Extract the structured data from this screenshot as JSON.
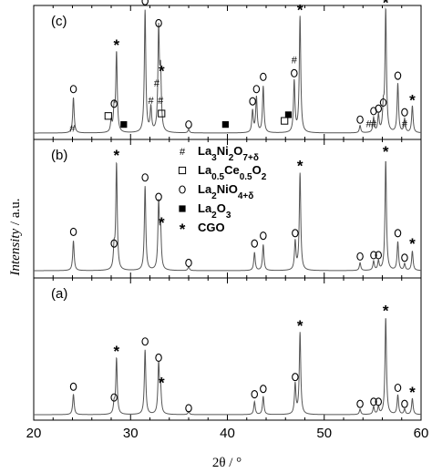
{
  "chart_data": {
    "type": "line",
    "xlabel": "2θ / °",
    "ylabel_italic": "Intensity",
    "ylabel_rest": " / a.u.",
    "xlim": [
      20,
      60
    ],
    "x_ticks": [
      20,
      30,
      40,
      50,
      60
    ],
    "panels": [
      {
        "label": "(c)",
        "peaks": [
          {
            "x": 24.1,
            "h": 0.29
          },
          {
            "x": 28.0,
            "h": 0.09
          },
          {
            "x": 28.3,
            "h": 0.18
          },
          {
            "x": 28.55,
            "h": 0.65
          },
          {
            "x": 31.5,
            "h": 1.0
          },
          {
            "x": 32.1,
            "h": 0.2
          },
          {
            "x": 32.9,
            "h": 0.82
          },
          {
            "x": 33.1,
            "h": 0.45
          },
          {
            "x": 36.0,
            "h": 0.03
          },
          {
            "x": 42.6,
            "h": 0.18
          },
          {
            "x": 43.0,
            "h": 0.29
          },
          {
            "x": 43.7,
            "h": 0.38
          },
          {
            "x": 46.9,
            "h": 0.42
          },
          {
            "x": 47.5,
            "h": 0.95
          },
          {
            "x": 53.7,
            "h": 0.06
          },
          {
            "x": 55.1,
            "h": 0.12
          },
          {
            "x": 55.6,
            "h": 0.14
          },
          {
            "x": 56.1,
            "h": 0.18
          },
          {
            "x": 56.35,
            "h": 1.0
          },
          {
            "x": 57.6,
            "h": 0.4
          },
          {
            "x": 58.3,
            "h": 0.11
          },
          {
            "x": 59.1,
            "h": 0.22
          }
        ],
        "markers": [
          {
            "sym": "o",
            "x": 24.1,
            "y": 0.36
          },
          {
            "sym": "o",
            "x": 28.3,
            "y": 0.24
          },
          {
            "sym": "*",
            "x": 28.55,
            "y": 0.73
          },
          {
            "sym": "o",
            "x": 31.5,
            "y": 1.08
          },
          {
            "sym": "o",
            "x": 32.9,
            "y": 0.9
          },
          {
            "sym": "*",
            "x": 33.2,
            "y": 0.52
          },
          {
            "sym": "o",
            "x": 36.0,
            "y": 0.07
          },
          {
            "sym": "o",
            "x": 42.6,
            "y": 0.26
          },
          {
            "sym": "o",
            "x": 43.0,
            "y": 0.36
          },
          {
            "sym": "o",
            "x": 43.7,
            "y": 0.46
          },
          {
            "sym": "o",
            "x": 46.9,
            "y": 0.49
          },
          {
            "sym": "*",
            "x": 47.5,
            "y": 1.02
          },
          {
            "sym": "o",
            "x": 53.7,
            "y": 0.11
          },
          {
            "sym": "o",
            "x": 55.1,
            "y": 0.18
          },
          {
            "sym": "o",
            "x": 55.6,
            "y": 0.2
          },
          {
            "sym": "o",
            "x": 56.1,
            "y": 0.25
          },
          {
            "sym": "*",
            "x": 56.35,
            "y": 1.08
          },
          {
            "sym": "o",
            "x": 57.6,
            "y": 0.47
          },
          {
            "sym": "o",
            "x": 58.3,
            "y": 0.17
          },
          {
            "sym": "*",
            "x": 59.1,
            "y": 0.28
          },
          {
            "sym": "#",
            "x": 24.0,
            "y": 0.04
          },
          {
            "sym": "#",
            "x": 32.1,
            "y": 0.27
          },
          {
            "sym": "#",
            "x": 32.7,
            "y": 0.41
          },
          {
            "sym": "#",
            "x": 33.1,
            "y": 0.27
          },
          {
            "sym": "#",
            "x": 46.9,
            "y": 0.6
          },
          {
            "sym": "#",
            "x": 54.6,
            "y": 0.08
          },
          {
            "sym": "#",
            "x": 55.1,
            "y": 0.08
          },
          {
            "sym": "#",
            "x": 58.3,
            "y": 0.08
          },
          {
            "sym": "□",
            "x": 27.7,
            "y": 0.14
          },
          {
            "sym": "□",
            "x": 33.2,
            "y": 0.16
          },
          {
            "sym": "□",
            "x": 45.9,
            "y": 0.1
          },
          {
            "sym": "■",
            "x": 29.3,
            "y": 0.07
          },
          {
            "sym": "■",
            "x": 39.8,
            "y": 0.07
          },
          {
            "sym": "■",
            "x": 46.3,
            "y": 0.15
          }
        ]
      },
      {
        "label": "(b)",
        "peaks": [
          {
            "x": 24.1,
            "h": 0.23
          },
          {
            "x": 28.3,
            "h": 0.15
          },
          {
            "x": 28.55,
            "h": 0.82
          },
          {
            "x": 31.5,
            "h": 0.65
          },
          {
            "x": 32.9,
            "h": 0.5
          },
          {
            "x": 33.1,
            "h": 0.3
          },
          {
            "x": 36.0,
            "h": 0.03
          },
          {
            "x": 42.8,
            "h": 0.14
          },
          {
            "x": 43.7,
            "h": 0.2
          },
          {
            "x": 47.0,
            "h": 0.22
          },
          {
            "x": 47.5,
            "h": 0.75
          },
          {
            "x": 53.7,
            "h": 0.06
          },
          {
            "x": 55.1,
            "h": 0.07
          },
          {
            "x": 55.6,
            "h": 0.07
          },
          {
            "x": 56.35,
            "h": 0.85
          },
          {
            "x": 57.6,
            "h": 0.22
          },
          {
            "x": 58.3,
            "h": 0.05
          },
          {
            "x": 59.1,
            "h": 0.15
          }
        ],
        "markers": [
          {
            "sym": "o",
            "x": 24.1,
            "y": 0.3
          },
          {
            "sym": "o",
            "x": 28.3,
            "y": 0.21
          },
          {
            "sym": "*",
            "x": 28.55,
            "y": 0.9
          },
          {
            "sym": "o",
            "x": 31.5,
            "y": 0.72
          },
          {
            "sym": "o",
            "x": 32.9,
            "y": 0.57
          },
          {
            "sym": "*",
            "x": 33.2,
            "y": 0.38
          },
          {
            "sym": "o",
            "x": 36.0,
            "y": 0.06
          },
          {
            "sym": "o",
            "x": 42.8,
            "y": 0.21
          },
          {
            "sym": "o",
            "x": 43.7,
            "y": 0.27
          },
          {
            "sym": "o",
            "x": 47.0,
            "y": 0.29
          },
          {
            "sym": "*",
            "x": 47.5,
            "y": 0.82
          },
          {
            "sym": "o",
            "x": 53.7,
            "y": 0.11
          },
          {
            "sym": "o",
            "x": 55.1,
            "y": 0.12
          },
          {
            "sym": "o",
            "x": 55.6,
            "y": 0.12
          },
          {
            "sym": "*",
            "x": 56.35,
            "y": 0.93
          },
          {
            "sym": "o",
            "x": 57.6,
            "y": 0.29
          },
          {
            "sym": "o",
            "x": 58.3,
            "y": 0.1
          },
          {
            "sym": "*",
            "x": 59.1,
            "y": 0.22
          }
        ]
      },
      {
        "label": "(a)",
        "peaks": [
          {
            "x": 24.1,
            "h": 0.19
          },
          {
            "x": 28.3,
            "h": 0.09
          },
          {
            "x": 28.55,
            "h": 0.52
          },
          {
            "x": 31.5,
            "h": 0.6
          },
          {
            "x": 32.9,
            "h": 0.46
          },
          {
            "x": 33.1,
            "h": 0.23
          },
          {
            "x": 36.0,
            "h": 0.03
          },
          {
            "x": 42.8,
            "h": 0.12
          },
          {
            "x": 43.7,
            "h": 0.17
          },
          {
            "x": 47.0,
            "h": 0.28
          },
          {
            "x": 47.5,
            "h": 0.76
          },
          {
            "x": 53.7,
            "h": 0.05
          },
          {
            "x": 55.1,
            "h": 0.07
          },
          {
            "x": 55.6,
            "h": 0.07
          },
          {
            "x": 56.35,
            "h": 0.9
          },
          {
            "x": 57.6,
            "h": 0.18
          },
          {
            "x": 58.3,
            "h": 0.05
          },
          {
            "x": 59.1,
            "h": 0.15
          }
        ],
        "markers": [
          {
            "sym": "o",
            "x": 24.1,
            "y": 0.26
          },
          {
            "sym": "o",
            "x": 28.3,
            "y": 0.16
          },
          {
            "sym": "*",
            "x": 28.55,
            "y": 0.6
          },
          {
            "sym": "o",
            "x": 31.5,
            "y": 0.68
          },
          {
            "sym": "o",
            "x": 32.9,
            "y": 0.53
          },
          {
            "sym": "*",
            "x": 33.2,
            "y": 0.31
          },
          {
            "sym": "o",
            "x": 36.0,
            "y": 0.06
          },
          {
            "sym": "o",
            "x": 42.8,
            "y": 0.19
          },
          {
            "sym": "o",
            "x": 43.7,
            "y": 0.24
          },
          {
            "sym": "o",
            "x": 47.0,
            "y": 0.35
          },
          {
            "sym": "*",
            "x": 47.5,
            "y": 0.84
          },
          {
            "sym": "o",
            "x": 53.7,
            "y": 0.1
          },
          {
            "sym": "o",
            "x": 55.1,
            "y": 0.12
          },
          {
            "sym": "o",
            "x": 55.6,
            "y": 0.12
          },
          {
            "sym": "*",
            "x": 56.35,
            "y": 0.98
          },
          {
            "sym": "o",
            "x": 57.6,
            "y": 0.25
          },
          {
            "sym": "o",
            "x": 58.3,
            "y": 0.1
          },
          {
            "sym": "*",
            "x": 59.1,
            "y": 0.22
          }
        ]
      }
    ],
    "legend": {
      "placement": "middle panel, center",
      "entries": [
        {
          "sym": "#",
          "parts": [
            [
              "La",
              ""
            ],
            [
              "3",
              "sub"
            ],
            [
              "Ni",
              ""
            ],
            [
              "2",
              "sub"
            ],
            [
              "O",
              ""
            ],
            [
              "7+δ",
              "sub"
            ]
          ]
        },
        {
          "sym": "□",
          "parts": [
            [
              "La",
              ""
            ],
            [
              "0.5",
              "sub"
            ],
            [
              "Ce",
              ""
            ],
            [
              "0.5",
              "sub"
            ],
            [
              "O",
              ""
            ],
            [
              "2",
              "sub"
            ]
          ]
        },
        {
          "sym": "o",
          "parts": [
            [
              "La",
              ""
            ],
            [
              "2",
              "sub"
            ],
            [
              "NiO",
              ""
            ],
            [
              "4+δ",
              "sub"
            ]
          ]
        },
        {
          "sym": "■",
          "parts": [
            [
              "La",
              ""
            ],
            [
              "2",
              "sub"
            ],
            [
              "O",
              ""
            ],
            [
              "3",
              "sub"
            ]
          ]
        },
        {
          "sym": "*",
          "parts": [
            [
              "CGO",
              ""
            ]
          ]
        }
      ]
    },
    "line_color": "#555555"
  }
}
